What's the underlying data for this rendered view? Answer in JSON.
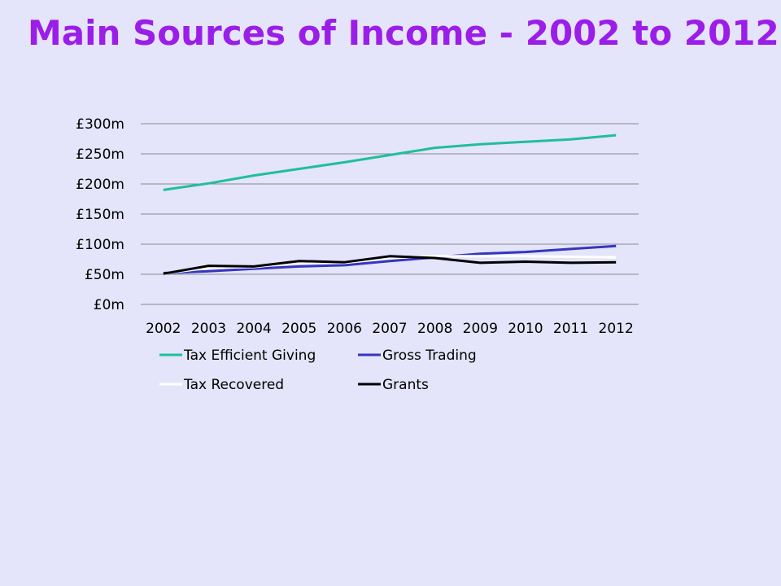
{
  "slide": {
    "title": "Main Sources of Income - 2002 to 2012"
  },
  "chart_data": {
    "type": "line",
    "title": "",
    "xlabel": "",
    "ylabel": "",
    "x": [
      "2002",
      "2003",
      "2004",
      "2005",
      "2006",
      "2007",
      "2008",
      "2009",
      "2010",
      "2011",
      "2012"
    ],
    "ylim": [
      0,
      300
    ],
    "yticks": [
      {
        "value": 0,
        "label": "£0m"
      },
      {
        "value": 50,
        "label": "£50m"
      },
      {
        "value": 100,
        "label": "£100m"
      },
      {
        "value": 150,
        "label": "£150m"
      },
      {
        "value": 200,
        "label": "£200m"
      },
      {
        "value": 250,
        "label": "£250m"
      },
      {
        "value": 300,
        "label": "£300m"
      }
    ],
    "grid": "horizontal",
    "legend_position": "bottom",
    "series": [
      {
        "name": "Tax Efficient Giving",
        "color": "#1fbf9a",
        "values": [
          190,
          201,
          214,
          225,
          236,
          248,
          260,
          266,
          270,
          274,
          281
        ]
      },
      {
        "name": "Gross Trading",
        "color": "#3535c0",
        "values": [
          52,
          55,
          59,
          63,
          65,
          72,
          78,
          84,
          87,
          92,
          97
        ]
      },
      {
        "name": "Tax Recovered",
        "color": "#ffffff",
        "values": [
          51,
          61,
          62,
          70,
          69,
          77,
          80,
          80,
          80,
          79,
          78
        ]
      },
      {
        "name": "Grants",
        "color": "#000000",
        "values": [
          51,
          64,
          63,
          72,
          70,
          80,
          77,
          69,
          71,
          69,
          70
        ]
      }
    ]
  }
}
